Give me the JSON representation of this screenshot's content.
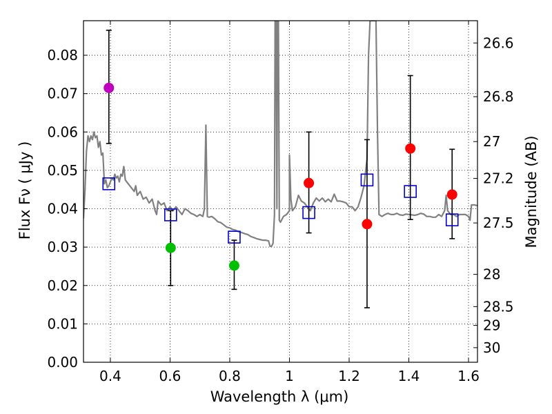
{
  "chart_data": {
    "type": "scatter",
    "xlabel": "Wavelength  λ (μm)",
    "ylabel": "Flux  Fν  ( μJy )",
    "y2label": "Magnitude (AB)",
    "xlim": [
      0.31,
      1.63
    ],
    "ylim": [
      0.0,
      0.089
    ],
    "grid": true,
    "x_ticks": [
      0.4,
      0.6,
      0.8,
      1.0,
      1.2,
      1.4,
      1.6
    ],
    "x_tick_labels": [
      "0.4",
      "0.6",
      "0.8",
      "1",
      "1.2",
      "1.4",
      "1.6"
    ],
    "y_ticks": [
      0.0,
      0.01,
      0.02,
      0.03,
      0.04,
      0.05,
      0.06,
      0.07,
      0.08
    ],
    "y_tick_labels": [
      "0.00",
      "0.01",
      "0.02",
      "0.03",
      "0.04",
      "0.05",
      "0.06",
      "0.07",
      "0.08"
    ],
    "mag_ticks": [
      {
        "label": "26.6",
        "flux": 0.0832
      },
      {
        "label": "26.8",
        "flux": 0.0692
      },
      {
        "label": "27",
        "flux": 0.0575
      },
      {
        "label": "27.2",
        "flux": 0.0479
      },
      {
        "label": "27.5",
        "flux": 0.0363
      },
      {
        "label": "28",
        "flux": 0.0229
      },
      {
        "label": "28.5",
        "flux": 0.0145
      },
      {
        "label": "29",
        "flux": 0.0096
      },
      {
        "label": "30",
        "flux": 0.0038
      }
    ],
    "observed": [
      {
        "x": 0.395,
        "y": 0.0715,
        "yerr_low": 0.057,
        "yerr_high": 0.0865,
        "color": "#bf00bf"
      },
      {
        "x": 0.602,
        "y": 0.0298,
        "yerr_low": 0.02,
        "yerr_high": 0.0395,
        "color": "#00bf00"
      },
      {
        "x": 0.815,
        "y": 0.0252,
        "yerr_low": 0.019,
        "yerr_high": 0.0318,
        "color": "#00bf00"
      },
      {
        "x": 1.065,
        "y": 0.0467,
        "yerr_low": 0.0337,
        "yerr_high": 0.06,
        "color": "#ff0000"
      },
      {
        "x": 1.26,
        "y": 0.036,
        "yerr_low": 0.0142,
        "yerr_high": 0.058,
        "color": "#ff0000"
      },
      {
        "x": 1.405,
        "y": 0.0557,
        "yerr_low": 0.0372,
        "yerr_high": 0.0747,
        "color": "#ff0000"
      },
      {
        "x": 1.545,
        "y": 0.0437,
        "yerr_low": 0.0322,
        "yerr_high": 0.0555,
        "color": "#ff0000"
      }
    ],
    "model_photometry": {
      "color": "#0000cc",
      "points": [
        {
          "x": 0.395,
          "y": 0.0465
        },
        {
          "x": 0.602,
          "y": 0.0384
        },
        {
          "x": 0.815,
          "y": 0.0326
        },
        {
          "x": 1.065,
          "y": 0.039
        },
        {
          "x": 1.26,
          "y": 0.0475
        },
        {
          "x": 1.405,
          "y": 0.0445
        },
        {
          "x": 1.545,
          "y": 0.0371
        }
      ]
    },
    "sed_model": {
      "color": "#808080",
      "points": [
        [
          0.31,
          0.0375
        ],
        [
          0.315,
          0.045
        ],
        [
          0.32,
          0.055
        ],
        [
          0.325,
          0.059
        ],
        [
          0.33,
          0.0575
        ],
        [
          0.335,
          0.059
        ],
        [
          0.34,
          0.058
        ],
        [
          0.345,
          0.06
        ],
        [
          0.35,
          0.0585
        ],
        [
          0.355,
          0.059
        ],
        [
          0.36,
          0.056
        ],
        [
          0.365,
          0.0575
        ],
        [
          0.37,
          0.054
        ],
        [
          0.375,
          0.0545
        ],
        [
          0.38,
          0.0465
        ],
        [
          0.385,
          0.0475
        ],
        [
          0.39,
          0.0455
        ],
        [
          0.395,
          0.046
        ],
        [
          0.4,
          0.047
        ],
        [
          0.405,
          0.048
        ],
        [
          0.41,
          0.0475
        ],
        [
          0.415,
          0.049
        ],
        [
          0.42,
          0.048
        ],
        [
          0.425,
          0.0485
        ],
        [
          0.43,
          0.047
        ],
        [
          0.435,
          0.049
        ],
        [
          0.44,
          0.0485
        ],
        [
          0.445,
          0.051
        ],
        [
          0.45,
          0.0475
        ],
        [
          0.46,
          0.0465
        ],
        [
          0.47,
          0.0455
        ],
        [
          0.48,
          0.0445
        ],
        [
          0.485,
          0.046
        ],
        [
          0.49,
          0.0435
        ],
        [
          0.5,
          0.0445
        ],
        [
          0.51,
          0.0425
        ],
        [
          0.52,
          0.043
        ],
        [
          0.53,
          0.0415
        ],
        [
          0.54,
          0.0425
        ],
        [
          0.55,
          0.0395
        ],
        [
          0.555,
          0.0385
        ],
        [
          0.56,
          0.042
        ],
        [
          0.57,
          0.041
        ],
        [
          0.58,
          0.0415
        ],
        [
          0.59,
          0.0395
        ],
        [
          0.6,
          0.0405
        ],
        [
          0.61,
          0.0395
        ],
        [
          0.62,
          0.0405
        ],
        [
          0.63,
          0.0395
        ],
        [
          0.64,
          0.0385
        ],
        [
          0.65,
          0.04
        ],
        [
          0.66,
          0.0395
        ],
        [
          0.67,
          0.0388
        ],
        [
          0.68,
          0.0385
        ],
        [
          0.69,
          0.038
        ],
        [
          0.7,
          0.0385
        ],
        [
          0.71,
          0.038
        ],
        [
          0.715,
          0.04
        ],
        [
          0.72,
          0.0618
        ],
        [
          0.725,
          0.038
        ],
        [
          0.73,
          0.0378
        ],
        [
          0.74,
          0.038
        ],
        [
          0.75,
          0.0374
        ],
        [
          0.76,
          0.0366
        ],
        [
          0.77,
          0.0364
        ],
        [
          0.78,
          0.0358
        ],
        [
          0.79,
          0.0352
        ],
        [
          0.8,
          0.035
        ],
        [
          0.81,
          0.0346
        ],
        [
          0.82,
          0.0344
        ],
        [
          0.83,
          0.034
        ],
        [
          0.84,
          0.0338
        ],
        [
          0.85,
          0.0335
        ],
        [
          0.86,
          0.0333
        ],
        [
          0.87,
          0.0328
        ],
        [
          0.88,
          0.0325
        ],
        [
          0.89,
          0.0322
        ],
        [
          0.9,
          0.032
        ],
        [
          0.91,
          0.0318
        ],
        [
          0.92,
          0.0318
        ],
        [
          0.93,
          0.0316
        ],
        [
          0.935,
          0.0302
        ],
        [
          0.94,
          0.0302
        ],
        [
          0.945,
          0.031
        ],
        [
          0.95,
          0.0385
        ],
        [
          0.952,
          0.089
        ],
        [
          0.955,
          0.089
        ],
        [
          0.958,
          0.04
        ],
        [
          0.96,
          0.089
        ],
        [
          0.963,
          0.089
        ],
        [
          0.966,
          0.037
        ],
        [
          0.97,
          0.0365
        ],
        [
          0.98,
          0.038
        ],
        [
          0.99,
          0.0385
        ],
        [
          1.0,
          0.0395
        ],
        [
          1.0,
          0.054
        ],
        [
          1.005,
          0.0425
        ],
        [
          1.01,
          0.0395
        ],
        [
          1.02,
          0.0405
        ],
        [
          1.03,
          0.0435
        ],
        [
          1.04,
          0.042
        ],
        [
          1.05,
          0.0415
        ],
        [
          1.06,
          0.0405
        ],
        [
          1.07,
          0.0395
        ],
        [
          1.08,
          0.0415
        ],
        [
          1.09,
          0.0428
        ],
        [
          1.1,
          0.042
        ],
        [
          1.11,
          0.0428
        ],
        [
          1.12,
          0.0418
        ],
        [
          1.13,
          0.0425
        ],
        [
          1.14,
          0.0418
        ],
        [
          1.15,
          0.0438
        ],
        [
          1.16,
          0.042
        ],
        [
          1.17,
          0.042
        ],
        [
          1.18,
          0.0418
        ],
        [
          1.19,
          0.0415
        ],
        [
          1.2,
          0.0405
        ],
        [
          1.21,
          0.0405
        ],
        [
          1.22,
          0.0395
        ],
        [
          1.23,
          0.0405
        ],
        [
          1.24,
          0.043
        ],
        [
          1.25,
          0.046
        ],
        [
          1.26,
          0.053
        ],
        [
          1.265,
          0.08
        ],
        [
          1.27,
          0.089
        ],
        [
          1.29,
          0.089
        ],
        [
          1.295,
          0.06
        ],
        [
          1.3,
          0.0385
        ],
        [
          1.31,
          0.038
        ],
        [
          1.32,
          0.0385
        ],
        [
          1.33,
          0.0388
        ],
        [
          1.34,
          0.0385
        ],
        [
          1.35,
          0.0385
        ],
        [
          1.36,
          0.0388
        ],
        [
          1.37,
          0.0384
        ],
        [
          1.38,
          0.0383
        ],
        [
          1.39,
          0.0386
        ],
        [
          1.4,
          0.0385
        ],
        [
          1.41,
          0.0384
        ],
        [
          1.42,
          0.0383
        ],
        [
          1.43,
          0.0385
        ],
        [
          1.44,
          0.0388
        ],
        [
          1.45,
          0.0386
        ],
        [
          1.46,
          0.038
        ],
        [
          1.47,
          0.038
        ],
        [
          1.48,
          0.0378
        ],
        [
          1.49,
          0.0378
        ],
        [
          1.5,
          0.0385
        ],
        [
          1.51,
          0.038
        ],
        [
          1.52,
          0.0395
        ],
        [
          1.525,
          0.0435
        ],
        [
          1.53,
          0.0395
        ],
        [
          1.54,
          0.0385
        ],
        [
          1.55,
          0.0385
        ],
        [
          1.56,
          0.038
        ],
        [
          1.57,
          0.0385
        ],
        [
          1.58,
          0.0385
        ],
        [
          1.59,
          0.0385
        ],
        [
          1.6,
          0.038
        ],
        [
          1.605,
          0.037
        ],
        [
          1.61,
          0.041
        ],
        [
          1.62,
          0.041
        ],
        [
          1.63,
          0.0408
        ]
      ]
    }
  }
}
